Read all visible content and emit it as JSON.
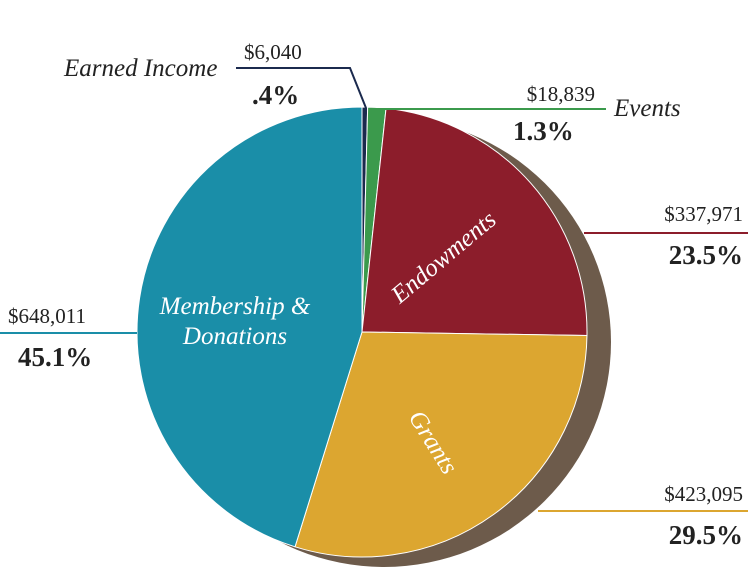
{
  "chart_data": {
    "type": "pie",
    "categories": [
      "Earned Income",
      "Events",
      "Endowments",
      "Grants",
      "Membership & Donations"
    ],
    "values": [
      0.4,
      1.3,
      23.5,
      29.5,
      45.1
    ],
    "value_labels": [
      ".4%",
      "1.3%",
      "23.5%",
      "29.5%",
      "45.1%"
    ],
    "amounts": [
      6040,
      18839,
      337971,
      423095,
      648011
    ],
    "amount_labels": [
      "$6,040",
      "$18,839",
      "$337,971",
      "$423,095",
      "$648,011"
    ],
    "colors": [
      "#1b2a4e",
      "#3b9a4c",
      "#8c1d2b",
      "#dca630",
      "#1a8ea8"
    ]
  }
}
